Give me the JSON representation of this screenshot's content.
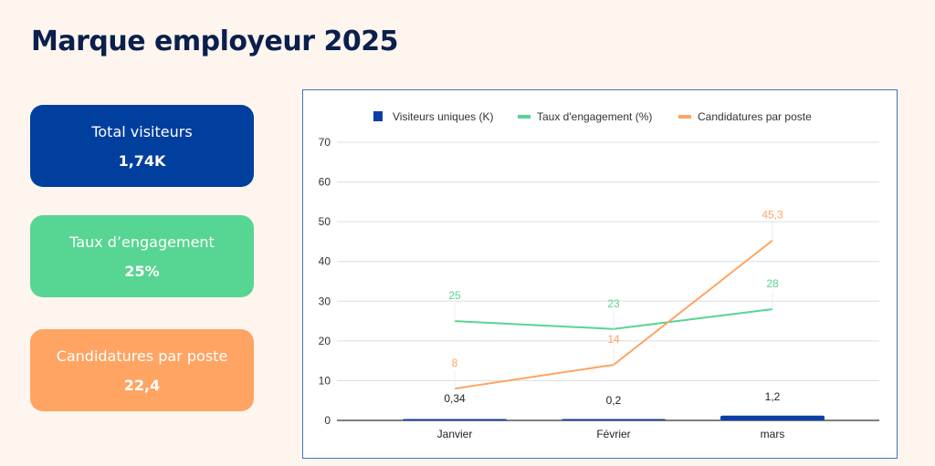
{
  "title": "Marque employeur 2025",
  "cards": [
    {
      "label": "Total visiteurs",
      "value": "1,74K",
      "color": "#003f9e"
    },
    {
      "label": "Taux d’engagement",
      "value": "25%",
      "color": "#57d592"
    },
    {
      "label": "Candidatures par poste",
      "value": "22,4",
      "color": "#ffa463"
    }
  ],
  "chart_data": {
    "type": "bar+line",
    "categories": [
      "Janvier",
      "Février",
      "mars"
    ],
    "ylim": [
      0,
      70
    ],
    "yticks": [
      0,
      10,
      20,
      30,
      40,
      50,
      60,
      70
    ],
    "grid": true,
    "legend_position": "top",
    "series": [
      {
        "name": "Visiteurs uniques (K)",
        "type": "bar",
        "color": "#0b3fa8",
        "values": [
          0.34,
          0.2,
          1.2
        ],
        "labels": [
          "0,34",
          "0,2",
          "1,2"
        ]
      },
      {
        "name": "Taux d'engagement (%)",
        "type": "line",
        "color": "#57d592",
        "values": [
          25,
          23,
          28
        ],
        "labels": [
          "25",
          "23",
          "28"
        ]
      },
      {
        "name": "Candidatures par poste",
        "type": "line",
        "color": "#ffa463",
        "values": [
          8,
          14,
          45.3
        ],
        "labels": [
          "8",
          "14",
          "45,3"
        ]
      }
    ]
  }
}
